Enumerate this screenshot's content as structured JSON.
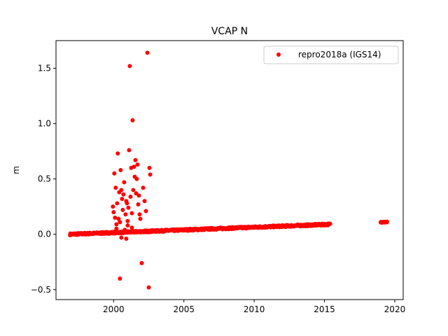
{
  "chart_data": {
    "type": "scatter",
    "title": "VCAP N",
    "xlabel": "",
    "ylabel": "m",
    "xlim": [
      1995.9,
      2020.6
    ],
    "ylim": [
      -0.59,
      1.75
    ],
    "x_ticks": [
      2000,
      2005,
      2010,
      2015,
      2020
    ],
    "y_ticks": [
      -0.5,
      0.0,
      0.5,
      1.0,
      1.5
    ],
    "x_tick_labels": [
      "2000",
      "2005",
      "2010",
      "2015",
      "2020"
    ],
    "y_tick_labels": [
      "−0.5",
      "0.0",
      "0.5",
      "1.0",
      "1.5"
    ],
    "grid": false,
    "legend": {
      "position": "top-right",
      "entries": [
        "repro2018a (IGS14)"
      ]
    },
    "series": [
      {
        "name": "repro2018a (IGS14)",
        "color": "#ff0000",
        "marker": "circle",
        "trend": {
          "x_start": 1996.9,
          "x_end": 2015.4,
          "y_start": 0.0,
          "y_end": 0.09,
          "noise": 0.008
        },
        "cluster": {
          "x_start": 2019.0,
          "x_end": 2019.45,
          "y": 0.11,
          "noise": 0.004
        },
        "outliers": [
          [
            1999.95,
            0.25
          ],
          [
            2000.0,
            0.2
          ],
          [
            2000.05,
            0.55
          ],
          [
            2000.1,
            0.15
          ],
          [
            2000.15,
            0.42
          ],
          [
            2000.2,
            0.09
          ],
          [
            2000.25,
            0.28
          ],
          [
            2000.3,
            0.73
          ],
          [
            2000.35,
            0.14
          ],
          [
            2000.4,
            0.38
          ],
          [
            2000.45,
            0.11
          ],
          [
            2000.5,
            0.58
          ],
          [
            2000.55,
            0.4
          ],
          [
            2000.6,
            0.32
          ],
          [
            2000.65,
            0.22
          ],
          [
            2000.7,
            0.36
          ],
          [
            2000.75,
            0.47
          ],
          [
            2000.8,
            0.04
          ],
          [
            2000.85,
            0.18
          ],
          [
            2000.9,
            0.3
          ],
          [
            2000.95,
            0.28
          ],
          [
            2001.0,
            0.12
          ],
          [
            2001.05,
            0.24
          ],
          [
            2001.1,
            0.76
          ],
          [
            2001.15,
            1.52
          ],
          [
            2001.2,
            0.34
          ],
          [
            2001.25,
            0.6
          ],
          [
            2001.3,
            0.19
          ],
          [
            2001.35,
            1.03
          ],
          [
            2001.4,
            0.4
          ],
          [
            2001.45,
            0.61
          ],
          [
            2001.5,
            0.52
          ],
          [
            2001.55,
            0.67
          ],
          [
            2001.6,
            0.37
          ],
          [
            2001.65,
            0.5
          ],
          [
            2001.7,
            0.63
          ],
          [
            2001.75,
            0.27
          ],
          [
            2001.8,
            0.35
          ],
          [
            2001.85,
            0.18
          ],
          [
            2001.9,
            0.14
          ],
          [
            2002.0,
            -0.26
          ],
          [
            2002.1,
            0.42
          ],
          [
            2002.2,
            0.3
          ],
          [
            2002.3,
            0.21
          ],
          [
            2002.4,
            1.64
          ],
          [
            2002.5,
            -0.48
          ],
          [
            2002.55,
            0.6
          ],
          [
            2002.6,
            0.54
          ],
          [
            2000.45,
            -0.4
          ],
          [
            2000.9,
            -0.04
          ],
          [
            2000.55,
            -0.03
          ],
          [
            2001.3,
            0.06
          ],
          [
            2000.2,
            0.05
          ],
          [
            2001.0,
            0.08
          ]
        ]
      }
    ]
  }
}
